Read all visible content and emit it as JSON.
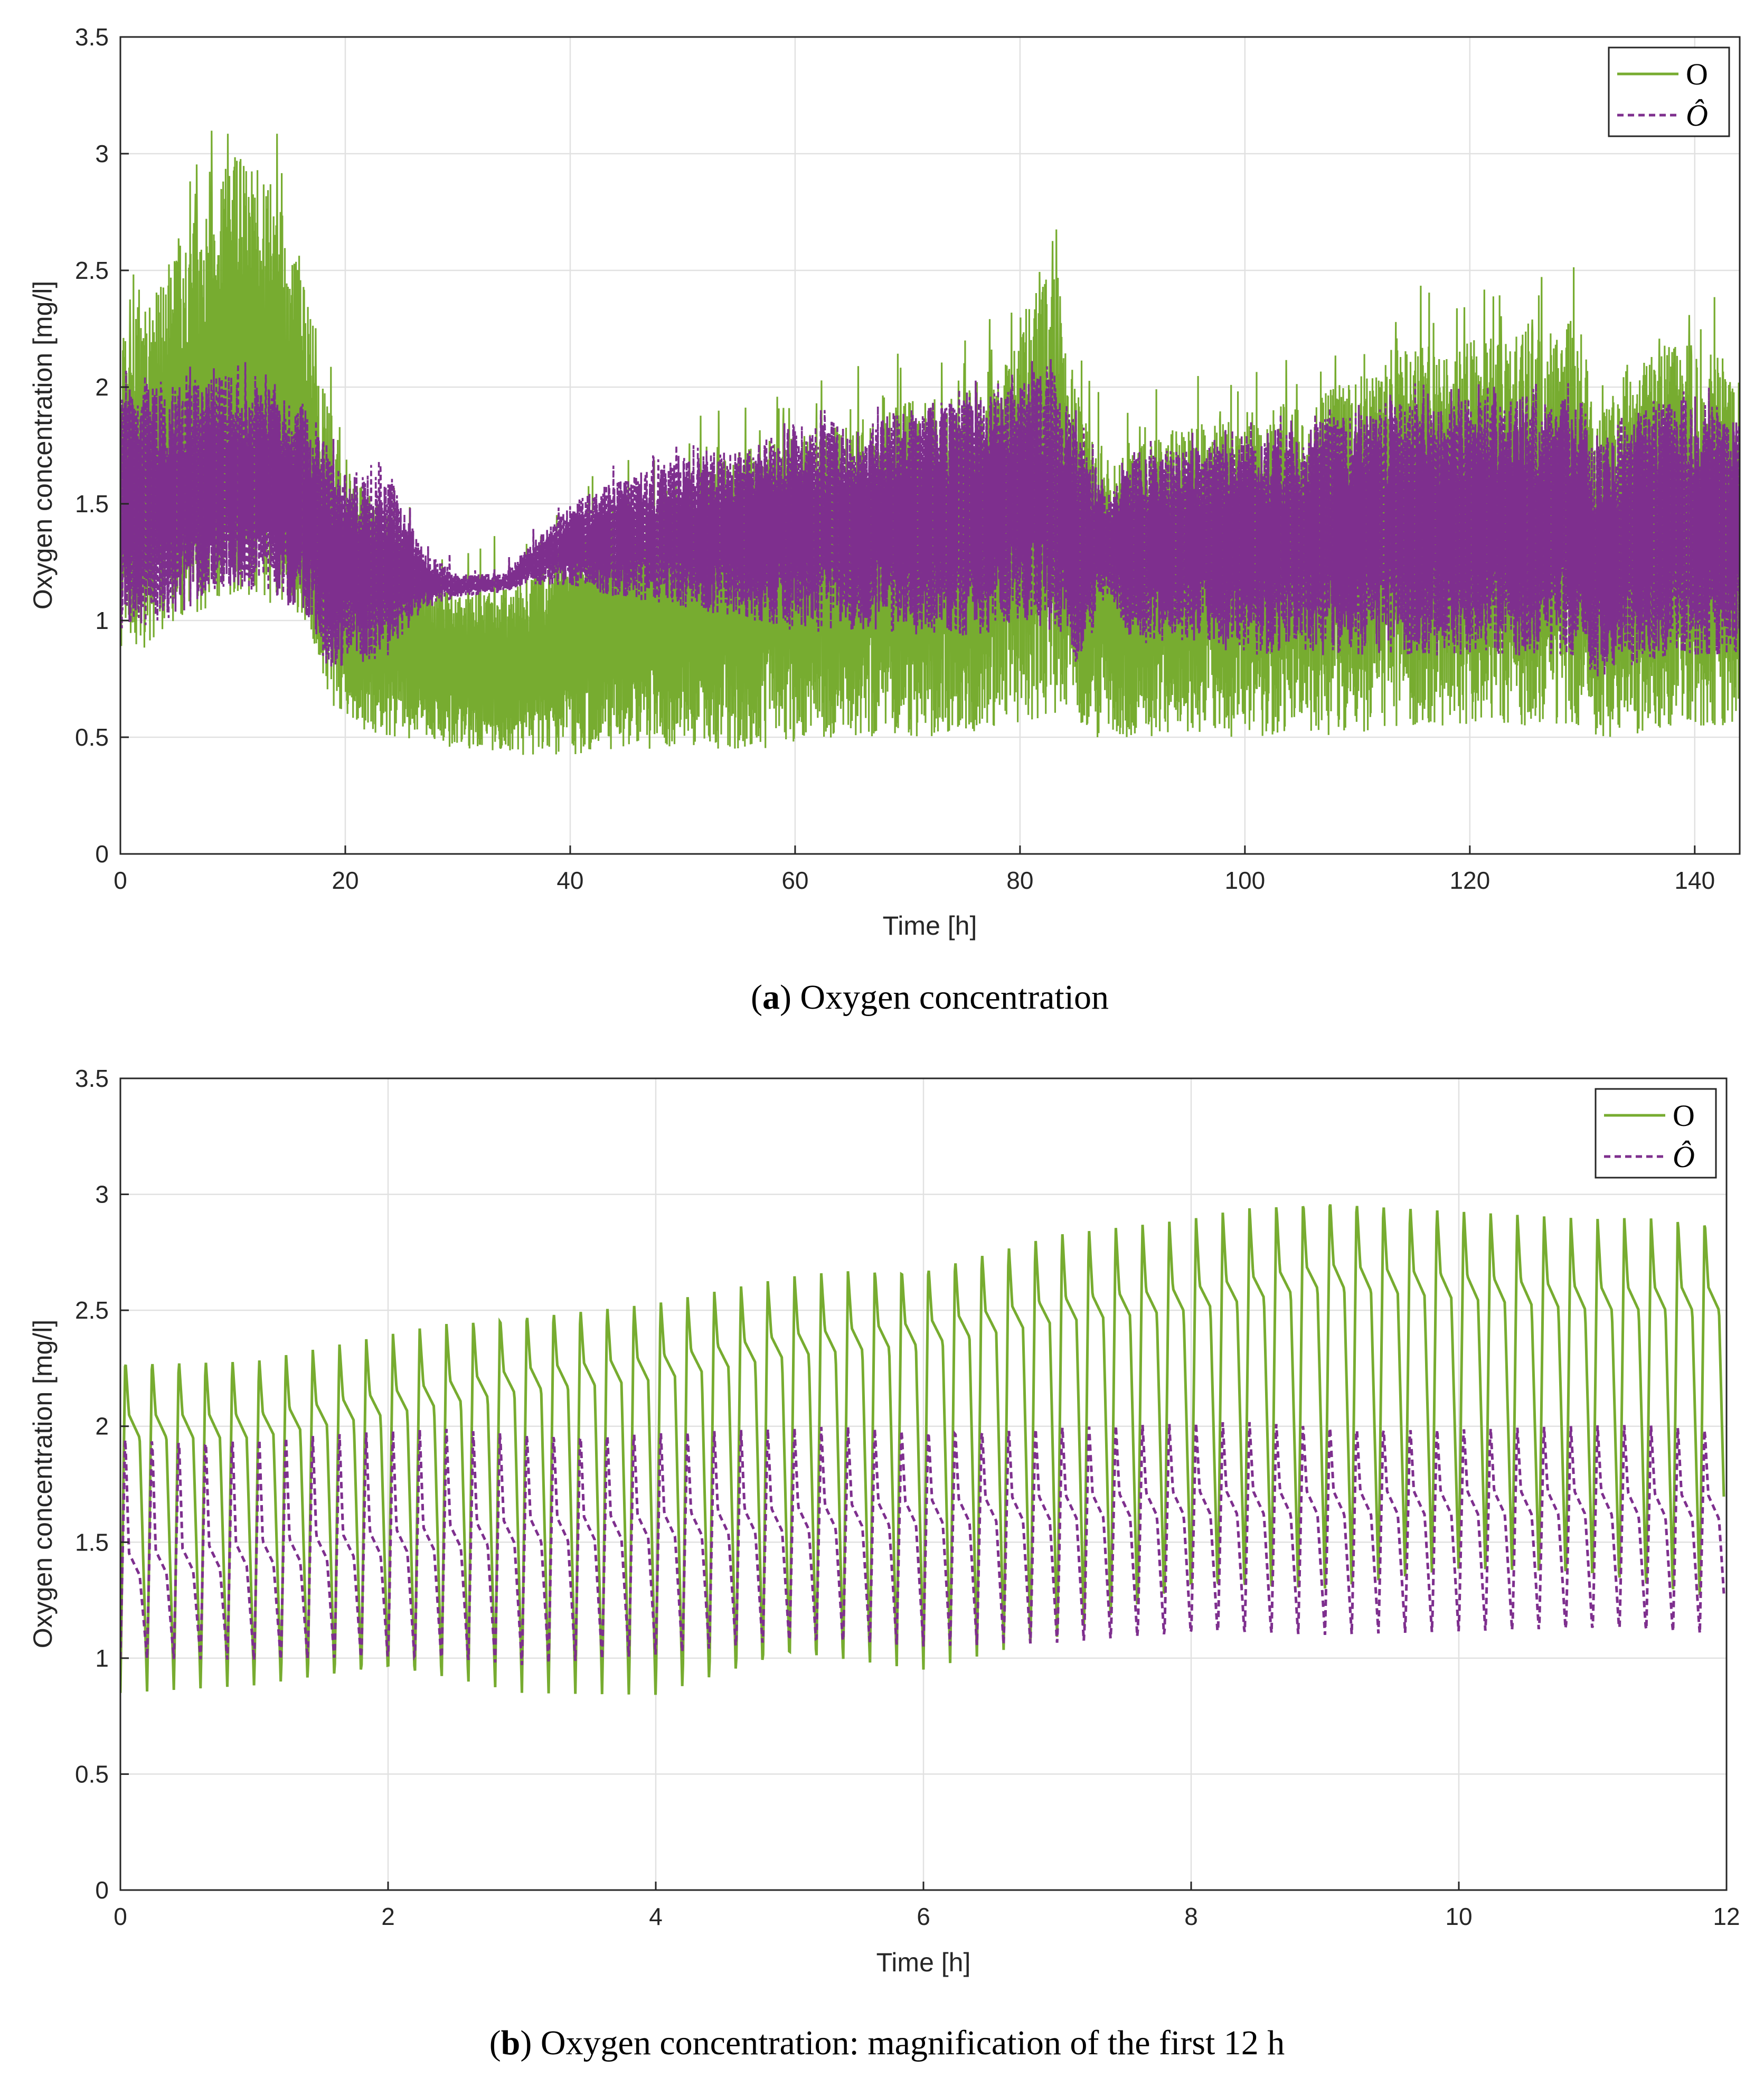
{
  "colors": {
    "measured": "#77AC30",
    "estimated": "#7E2F8E",
    "grid": "#E1E1E1",
    "axis": "#262626"
  },
  "chart_data": [
    {
      "type": "line",
      "caption_label": "a",
      "caption_text": "Oxygen concentration",
      "xlabel": "Time [h]",
      "ylabel": "Oxygen concentration [mg/l]",
      "xlim": [
        0,
        144
      ],
      "ylim": [
        0,
        3.5
      ],
      "xticks": [
        0,
        20,
        40,
        60,
        80,
        100,
        120,
        140
      ],
      "xtick_labels": [
        "0",
        "20",
        "40",
        "60",
        "80",
        "100",
        "120",
        "140"
      ],
      "yticks": [
        0,
        0.5,
        1,
        1.5,
        2,
        2.5,
        3,
        3.5
      ],
      "ytick_labels": [
        "0",
        "0.5",
        "1",
        "1.5",
        "2",
        "2.5",
        "3",
        "3.5"
      ],
      "grid": true,
      "legend_position": "top-right",
      "series": [
        {
          "name": "O",
          "style": "solid",
          "x": [
            0,
            4,
            8,
            10,
            14,
            17,
            18,
            20,
            24,
            27,
            30,
            34,
            36,
            40,
            44,
            50,
            56,
            60,
            66,
            70,
            74,
            78,
            80,
            83,
            85,
            88,
            90,
            96,
            100,
            106,
            110,
            116,
            120,
            126,
            130,
            131,
            134,
            138,
            144
          ],
          "upper": [
            2.25,
            2.5,
            2.85,
            3.0,
            2.85,
            2.3,
            2.05,
            1.65,
            1.45,
            1.2,
            1.1,
            1.15,
            1.2,
            1.35,
            1.5,
            1.6,
            1.75,
            1.8,
            1.85,
            1.95,
            1.95,
            2.1,
            2.35,
            2.5,
            2.0,
            1.7,
            1.75,
            1.85,
            1.9,
            1.95,
            2.05,
            2.2,
            2.2,
            2.25,
            2.3,
            1.85,
            2.1,
            2.2,
            2.1
          ],
          "lower": [
            0.8,
            0.95,
            1.05,
            1.1,
            1.05,
            0.95,
            0.7,
            0.55,
            0.5,
            0.48,
            0.45,
            0.42,
            0.42,
            0.42,
            0.45,
            0.45,
            0.45,
            0.45,
            0.5,
            0.5,
            0.5,
            0.55,
            0.55,
            0.6,
            0.55,
            0.45,
            0.5,
            0.5,
            0.5,
            0.5,
            0.52,
            0.55,
            0.55,
            0.55,
            0.55,
            0.5,
            0.5,
            0.55,
            0.55
          ]
        },
        {
          "name": "Ô",
          "style": "dashed",
          "x": [
            0,
            4,
            8,
            10,
            14,
            17,
            18,
            20,
            24,
            27,
            30,
            34,
            36,
            40,
            44,
            50,
            56,
            60,
            66,
            70,
            74,
            78,
            80,
            83,
            85,
            88,
            90,
            96,
            100,
            106,
            110,
            116,
            120,
            126,
            130,
            131,
            134,
            138,
            144
          ],
          "upper": [
            2.0,
            2.0,
            2.05,
            2.05,
            2.0,
            1.9,
            1.8,
            1.65,
            1.6,
            1.3,
            1.2,
            1.2,
            1.3,
            1.5,
            1.6,
            1.7,
            1.75,
            1.85,
            1.85,
            1.9,
            1.95,
            2.0,
            2.05,
            2.05,
            1.85,
            1.55,
            1.7,
            1.75,
            1.8,
            1.85,
            1.9,
            1.95,
            1.95,
            1.95,
            1.95,
            1.75,
            1.9,
            1.95,
            1.9
          ],
          "lower": [
            0.95,
            1.0,
            1.1,
            1.15,
            1.1,
            0.95,
            0.8,
            0.8,
            0.85,
            1.05,
            1.1,
            1.12,
            1.15,
            1.15,
            1.1,
            1.05,
            1.0,
            0.95,
            0.95,
            0.95,
            0.9,
            0.95,
            1.0,
            0.95,
            0.8,
            1.1,
            0.9,
            0.9,
            0.85,
            0.85,
            0.85,
            0.85,
            0.85,
            0.85,
            0.85,
            0.75,
            0.8,
            0.85,
            0.85
          ]
        }
      ]
    },
    {
      "type": "line",
      "caption_label": "b",
      "caption_text": "Oxygen concentration: magnification of the first 12 h",
      "xlabel": "Time [h]",
      "ylabel": "Oxygen concentration [mg/l]",
      "xlim": [
        0,
        12
      ],
      "ylim": [
        0,
        3.5
      ],
      "xticks": [
        0,
        2,
        4,
        6,
        8,
        10,
        12
      ],
      "xtick_labels": [
        "0",
        "2",
        "4",
        "6",
        "8",
        "10",
        "12"
      ],
      "yticks": [
        0,
        0.5,
        1,
        1.5,
        2,
        2.5,
        3,
        3.5
      ],
      "ytick_labels": [
        "0",
        "0.5",
        "1",
        "1.5",
        "2",
        "2.5",
        "3",
        "3.5"
      ],
      "grid": true,
      "legend_position": "top-right",
      "cycle_period_h": 0.2,
      "series": [
        {
          "name": "O",
          "style": "solid",
          "x": [
            0,
            1,
            2,
            3,
            4,
            5,
            6,
            7,
            8,
            9,
            10,
            11,
            11.95
          ],
          "peak": [
            2.3,
            2.3,
            2.4,
            2.5,
            2.55,
            2.65,
            2.7,
            2.85,
            2.9,
            3.0,
            2.95,
            2.9,
            2.9
          ],
          "plateau": [
            2.05,
            2.05,
            2.15,
            2.25,
            2.3,
            2.4,
            2.45,
            2.55,
            2.6,
            2.7,
            2.65,
            2.6,
            2.6
          ],
          "trough": [
            0.85,
            0.85,
            0.9,
            0.85,
            0.8,
            0.95,
            0.95,
            1.05,
            1.25,
            1.3,
            1.35,
            1.3,
            1.25
          ]
        },
        {
          "name": "Ô",
          "style": "dashed",
          "x": [
            0,
            1,
            2,
            3,
            4,
            5,
            6,
            7,
            8,
            9,
            10,
            11,
            11.95
          ],
          "peak": [
            1.97,
            1.98,
            1.99,
            1.99,
            2.0,
            2.0,
            2.0,
            2.02,
            2.02,
            2.02,
            2.01,
            2.01,
            2.0
          ],
          "plateau": [
            1.45,
            1.5,
            1.55,
            1.6,
            1.62,
            1.65,
            1.68,
            1.7,
            1.72,
            1.72,
            1.72,
            1.72,
            1.7
          ],
          "trough": [
            1.0,
            0.98,
            0.98,
            0.97,
            1.0,
            1.05,
            1.05,
            1.05,
            1.08,
            1.1,
            1.1,
            1.1,
            1.1
          ]
        }
      ]
    }
  ]
}
